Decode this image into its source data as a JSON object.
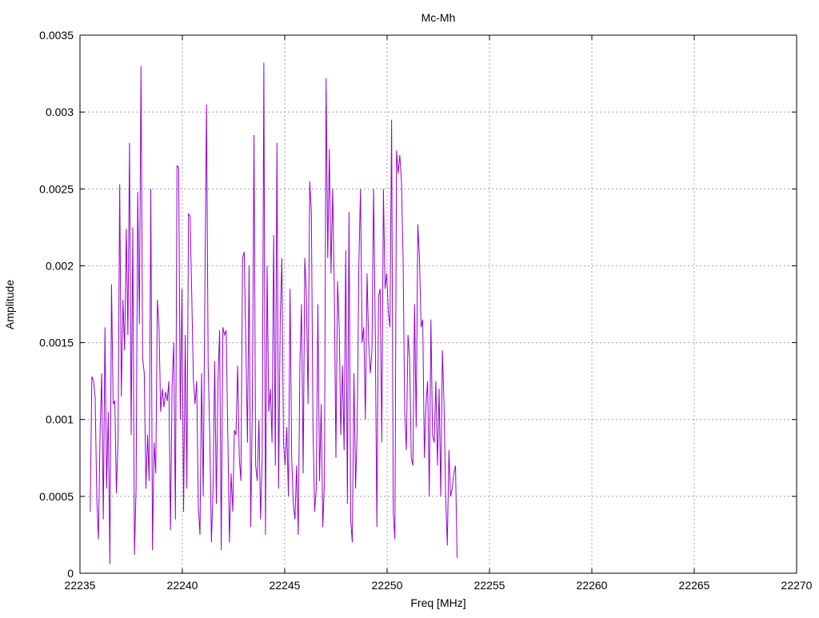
{
  "chart_data": {
    "type": "line",
    "title": "Mc-Mh",
    "xlabel": "Freq [MHz]",
    "ylabel": "Amplitude",
    "xlim": [
      22235,
      22270
    ],
    "ylim": [
      0,
      0.0035
    ],
    "x_ticks": [
      "22235",
      "22240",
      "22245",
      "22250",
      "22255",
      "22260",
      "22265",
      "22270"
    ],
    "y_ticks": [
      "0",
      "0.0005",
      "0.001",
      "0.0015",
      "0.002",
      "0.0025",
      "0.003",
      "0.0035"
    ],
    "grid": true,
    "legend": "none",
    "series": [
      {
        "color": "#9400d3",
        "x_start": 22235.5,
        "x_step": 0.08,
        "values": [
          0.0004,
          0.00128,
          0.00125,
          0.00115,
          0.0005,
          0.00022,
          0.0009,
          0.0013,
          0.00035,
          0.0016,
          0.00055,
          0.00105,
          6e-05,
          0.00188,
          0.0011,
          0.00112,
          0.00052,
          0.00088,
          0.00253,
          0.00115,
          0.00178,
          0.00145,
          0.00224,
          0.00155,
          0.0028,
          0.0009,
          0.00225,
          0.00012,
          0.00055,
          0.00248,
          0.00162,
          0.0033,
          0.0014,
          0.0013,
          0.00055,
          0.0009,
          0.0006,
          0.0025,
          0.00015,
          0.00085,
          0.00065,
          0.00178,
          0.0016,
          0.00105,
          0.0012,
          0.00108,
          0.00118,
          0.00112,
          0.00125,
          0.00028,
          0.00122,
          0.0015,
          0.00035,
          0.00265,
          0.00264,
          0.001,
          0.00185,
          0.0004,
          0.00155,
          0.00055,
          0.00234,
          0.00232,
          0.0018,
          0.00125,
          0.0011,
          0.00125,
          0.00043,
          0.00025,
          0.0013,
          0.0005,
          0.00185,
          0.00305,
          0.00135,
          0.0009,
          0.0002,
          0.00055,
          0.00138,
          0.00045,
          0.00125,
          0.00158,
          0.00015,
          0.0016,
          0.00155,
          0.00158,
          0.0009,
          0.0002,
          0.00065,
          0.0004,
          0.00093,
          0.0009,
          0.00135,
          0.00075,
          0.0006,
          0.00205,
          0.00209,
          0.0015,
          0.00085,
          0.002,
          0.0003,
          0.0011,
          0.00285,
          0.0007,
          0.0006,
          0.001,
          0.00035,
          0.00075,
          0.00332,
          0.00025,
          0.002,
          0.00105,
          0.0012,
          0.00085,
          0.0022,
          0.0007,
          0.0028,
          0.00055,
          0.00165,
          0.00205,
          0.00085,
          0.0007,
          0.00095,
          0.0005,
          0.00185,
          0.00075,
          0.00045,
          0.00035,
          0.0007,
          0.00025,
          0.00135,
          0.00175,
          0.00065,
          0.00205,
          0.0018,
          0.0011,
          0.00255,
          0.00235,
          0.00095,
          0.0004,
          0.00055,
          0.00175,
          0.0006,
          0.0011,
          0.0003,
          0.0006,
          0.00322,
          0.00205,
          0.00276,
          0.00195,
          0.0025,
          0.00185,
          0.00075,
          0.0019,
          0.0016,
          0.0009,
          0.00135,
          0.0008,
          0.0021,
          0.00045,
          0.00235,
          0.00035,
          0.0002,
          0.0013,
          0.00055,
          0.00095,
          0.002,
          0.0025,
          0.0015,
          0.0016,
          0.001,
          0.00195,
          0.0015,
          0.0013,
          0.00145,
          0.0025,
          0.0016,
          0.0003,
          0.0018,
          0.00185,
          0.00085,
          0.0025,
          0.00185,
          0.00195,
          0.0017,
          0.0016,
          0.00295,
          0.0004,
          0.00022,
          0.00275,
          0.0026,
          0.00272,
          0.00255,
          0.00205,
          0.00105,
          0.0008,
          0.00155,
          0.0014,
          0.00075,
          0.0007,
          0.00175,
          0.00095,
          0.00227,
          0.00205,
          0.0016,
          0.00165,
          0.00075,
          0.0011,
          0.00125,
          0.0005,
          0.00165,
          0.0009,
          0.00085,
          0.00125,
          0.0007,
          0.0012,
          0.0005,
          0.00145,
          0.0011,
          0.0005,
          0.00018,
          0.0008,
          0.0005,
          0.00055,
          0.00065,
          0.0007,
          0.0001
        ]
      }
    ]
  }
}
